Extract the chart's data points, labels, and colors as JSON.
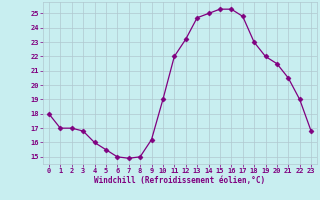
{
  "x": [
    0,
    1,
    2,
    3,
    4,
    5,
    6,
    7,
    8,
    9,
    10,
    11,
    12,
    13,
    14,
    15,
    16,
    17,
    18,
    19,
    20,
    21,
    22,
    23
  ],
  "y": [
    18.0,
    17.0,
    17.0,
    16.8,
    16.0,
    15.5,
    15.0,
    14.9,
    15.0,
    16.2,
    19.0,
    22.0,
    23.2,
    24.7,
    25.0,
    25.3,
    25.3,
    24.8,
    23.0,
    22.0,
    21.5,
    20.5,
    19.0,
    16.8
  ],
  "line_color": "#800080",
  "marker": "D",
  "marker_size": 2.5,
  "bg_color": "#c8eef0",
  "grid_color": "#b0c8d0",
  "xlabel": "Windchill (Refroidissement éolien,°C)",
  "xlabel_color": "#800080",
  "tick_color": "#800080",
  "ylim": [
    14.5,
    25.8
  ],
  "xlim": [
    -0.5,
    23.5
  ],
  "yticks": [
    15,
    16,
    17,
    18,
    19,
    20,
    21,
    22,
    23,
    24,
    25
  ],
  "xticks": [
    0,
    1,
    2,
    3,
    4,
    5,
    6,
    7,
    8,
    9,
    10,
    11,
    12,
    13,
    14,
    15,
    16,
    17,
    18,
    19,
    20,
    21,
    22,
    23
  ]
}
